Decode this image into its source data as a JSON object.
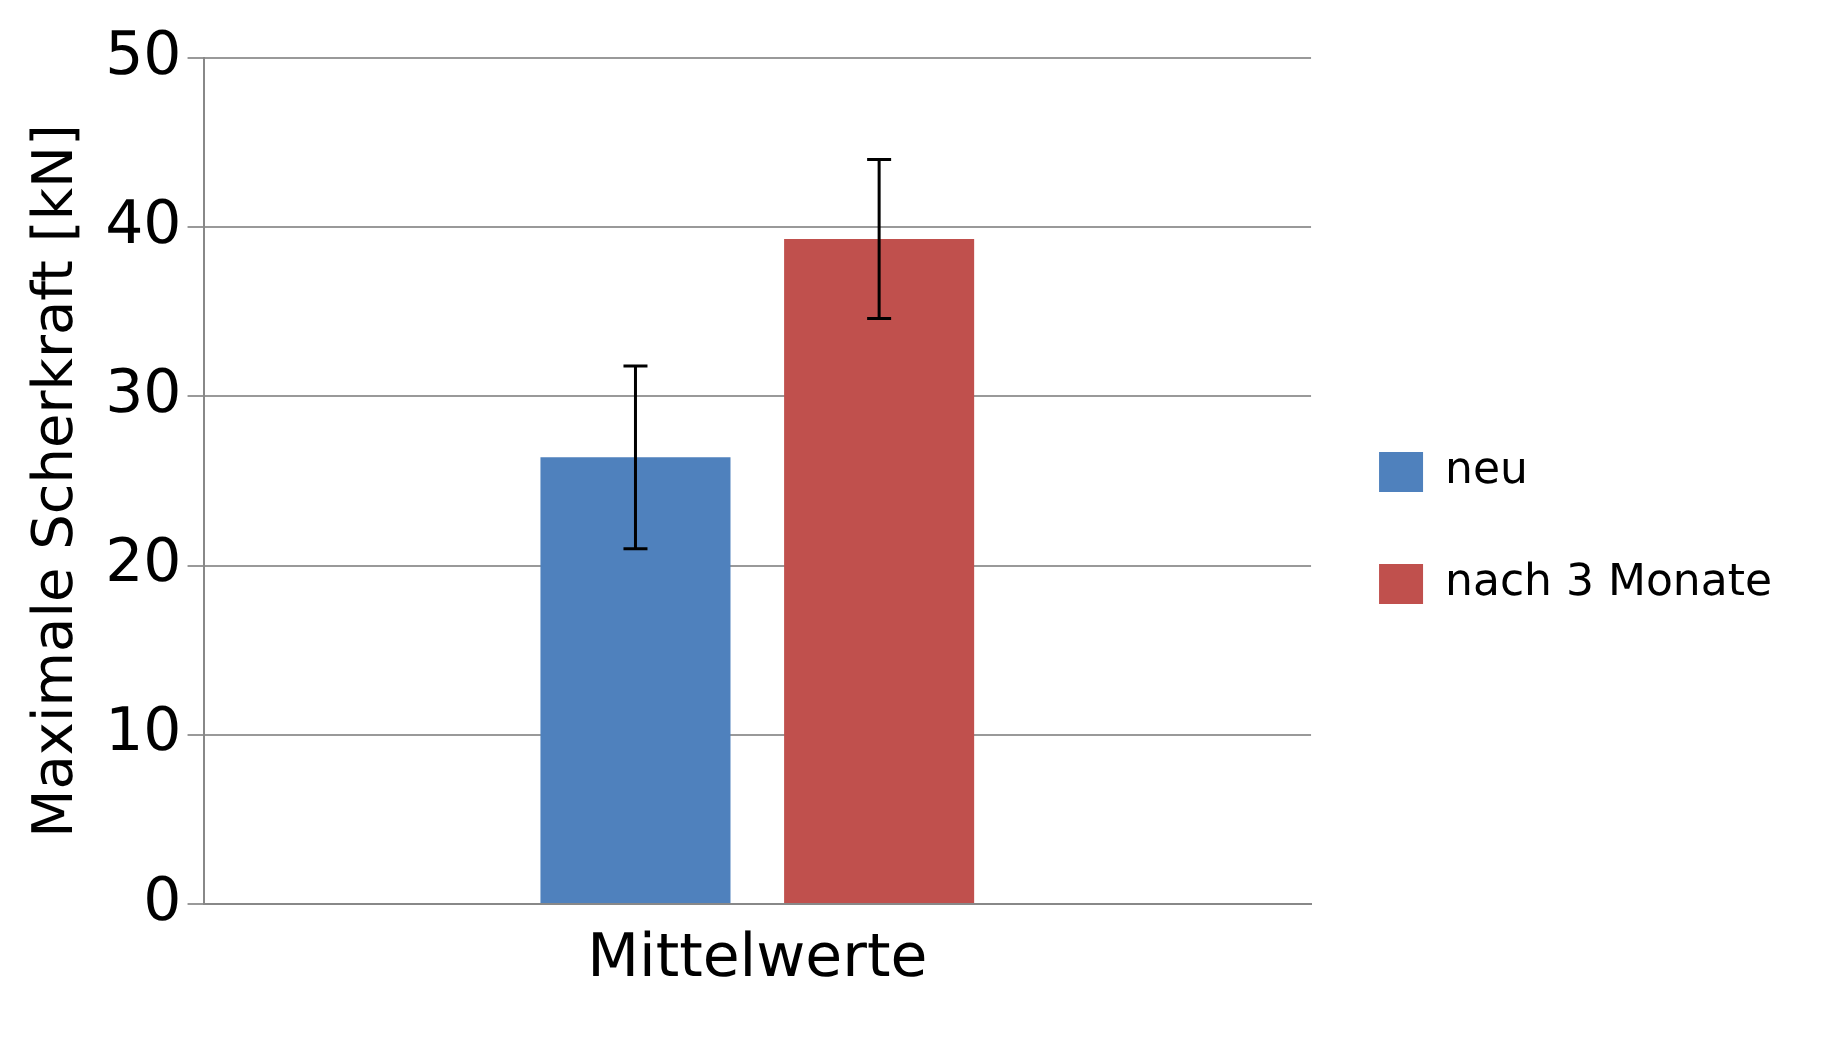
{
  "chart_data": {
    "type": "bar",
    "ylabel": "Maximale Scherkraft [kN]",
    "categories": [
      "Mittelwerte"
    ],
    "series": [
      {
        "name": "neu",
        "color": "#4f81bd",
        "values": [
          26.4
        ],
        "errors": [
          5.4
        ]
      },
      {
        "name": "nach 3 Monate",
        "color": "#c0504d",
        "values": [
          39.3
        ],
        "errors": [
          4.7
        ]
      }
    ],
    "ylim": [
      0,
      50
    ],
    "yticks": [
      0,
      10,
      20,
      30,
      40,
      50
    ],
    "grid": "y",
    "legend": "right"
  }
}
